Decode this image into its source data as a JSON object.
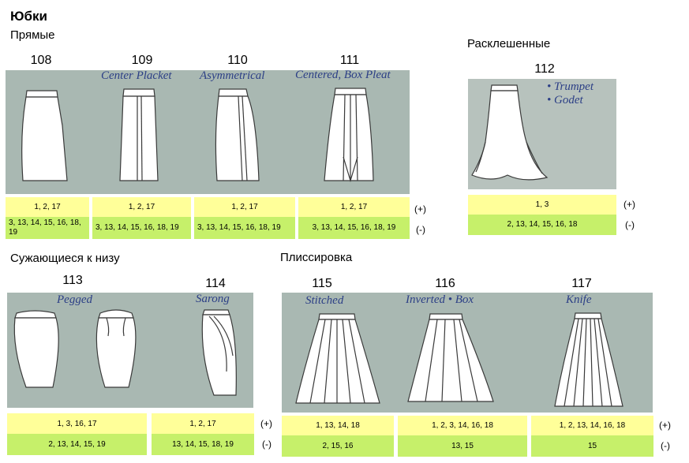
{
  "title": "Юбки",
  "groups": {
    "straight": "Прямые",
    "flared": "Расклешенные",
    "tapered": "Сужающиеся к низу",
    "pleated": "Плиссировка"
  },
  "skirts": [
    {
      "num": "108",
      "caption": "",
      "plus": "1, 2, 17",
      "minus": "3, 13, 14, 15, 16, 18, 19"
    },
    {
      "num": "109",
      "caption": "Center Placket",
      "plus": "1, 2, 17",
      "minus": "3, 13, 14, 15, 16, 18, 19"
    },
    {
      "num": "110",
      "caption": "Asymmetrical",
      "plus": "1, 2, 17",
      "minus": "3, 13, 14, 15, 16, 18, 19"
    },
    {
      "num": "111",
      "caption": "Centered, Box Pleat",
      "plus": "1, 2, 17",
      "minus": "3, 13, 14, 15, 16, 18, 19"
    },
    {
      "num": "112",
      "caption_lines": [
        "• Trumpet",
        "• Godet"
      ],
      "plus": "1, 3",
      "minus": "2, 13,  14, 15, 16, 18"
    },
    {
      "num": "113",
      "caption": "Pegged",
      "plus": "1, 3, 16, 17",
      "minus": "2, 13, 14, 15, 19"
    },
    {
      "num": "114",
      "caption": "Sarong",
      "plus": "1, 2, 17",
      "minus": "13, 14, 15, 18, 19"
    },
    {
      "num": "115",
      "caption": "Stitched",
      "plus": "1, 13, 14, 18",
      "minus": "2, 15, 16"
    },
    {
      "num": "116",
      "caption": "Inverted  •  Box",
      "plus": "1, 2, 3, 14, 16, 18",
      "minus": "13, 15"
    },
    {
      "num": "117",
      "caption": "Knife",
      "plus": "1, 2, 13, 14, 16, 18",
      "minus": "15"
    }
  ],
  "signs": {
    "plus": "(+)",
    "minus": "(-)"
  }
}
